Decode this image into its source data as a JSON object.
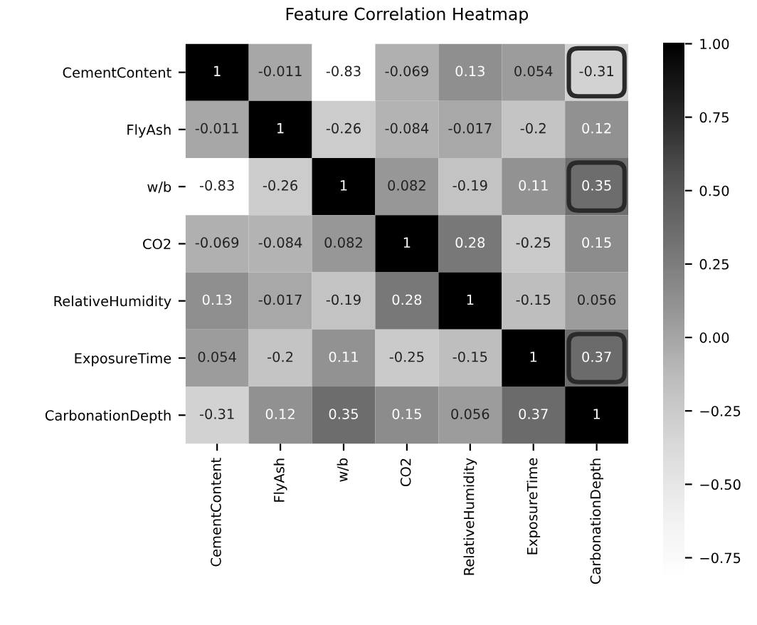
{
  "chart_data": {
    "type": "heatmap",
    "title": "Feature Correlation Heatmap",
    "categories": [
      "CementContent",
      "FlyAsh",
      "w/b",
      "CO2",
      "RelativeHumidity",
      "ExposureTime",
      "CarbonationDepth"
    ],
    "y_categories": [
      "CementContent",
      "FlyAsh",
      "w/b",
      "CO2",
      "RelativeHumidity",
      "ExposureTime",
      "CarbonationDepth"
    ],
    "cells": [
      [
        1,
        -0.011,
        -0.83,
        -0.069,
        0.13,
        0.054,
        -0.31
      ],
      [
        -0.011,
        1,
        -0.26,
        -0.084,
        -0.017,
        -0.2,
        0.12
      ],
      [
        -0.83,
        -0.26,
        1,
        0.082,
        -0.19,
        0.11,
        0.35
      ],
      [
        -0.069,
        -0.084,
        0.082,
        1,
        0.28,
        -0.25,
        0.15
      ],
      [
        0.13,
        -0.017,
        -0.19,
        0.28,
        1,
        -0.15,
        0.056
      ],
      [
        0.054,
        -0.2,
        0.11,
        -0.25,
        -0.15,
        1,
        0.37
      ],
      [
        -0.31,
        0.12,
        0.35,
        0.15,
        0.056,
        0.37,
        1
      ]
    ],
    "clim": [
      -0.83,
      1
    ],
    "cticks": [
      {
        "value": -0.75,
        "label": "−0.75"
      },
      {
        "value": -0.5,
        "label": "−0.50"
      },
      {
        "value": -0.25,
        "label": "−0.25"
      },
      {
        "value": 0,
        "label": "0.00"
      },
      {
        "value": 0.25,
        "label": "0.25"
      },
      {
        "value": 0.5,
        "label": "0.50"
      },
      {
        "value": 0.75,
        "label": "0.75"
      },
      {
        "value": 1,
        "label": "1.00"
      }
    ],
    "data_labels": true
  }
}
